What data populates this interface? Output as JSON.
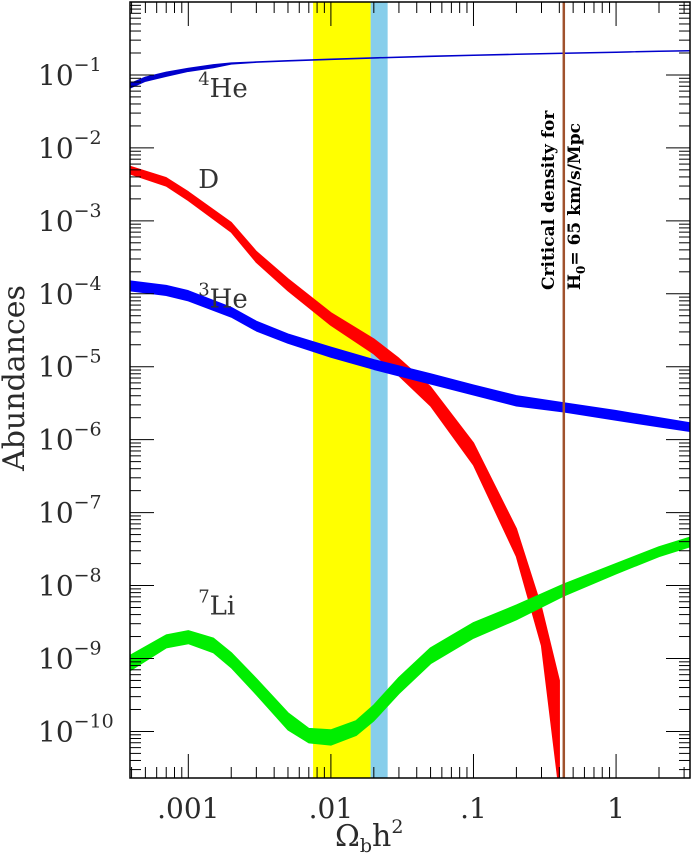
{
  "chart_data": {
    "type": "line",
    "xlabel": {
      "omega": "Ω",
      "sub": "b",
      "h": "h",
      "sup": "2"
    },
    "ylabel": "Abundances",
    "x_scale": "log",
    "y_scale": "log",
    "xlim": [
      0.00039,
      3.3
    ],
    "ylim": [
      2.3e-11,
      1.0
    ],
    "grid": false,
    "x_tick_labels": [
      {
        "value": 0.001,
        "label": ".001"
      },
      {
        "value": 0.01,
        "label": ".01"
      },
      {
        "value": 0.1,
        "label": ".1"
      },
      {
        "value": 1,
        "label": "1"
      }
    ],
    "y_tick_labels": [
      {
        "value": 0.1,
        "base": "10",
        "exp": "−1"
      },
      {
        "value": 0.01,
        "base": "10",
        "exp": "−2"
      },
      {
        "value": 0.001,
        "base": "10",
        "exp": "−3"
      },
      {
        "value": 0.0001,
        "base": "10",
        "exp": "−4"
      },
      {
        "value": 1e-05,
        "base": "10",
        "exp": "−5"
      },
      {
        "value": 1e-06,
        "base": "10",
        "exp": "−6"
      },
      {
        "value": 1e-07,
        "base": "10",
        "exp": "−7"
      },
      {
        "value": 1e-08,
        "base": "10",
        "exp": "−8"
      },
      {
        "value": 1e-09,
        "base": "10",
        "exp": "−9"
      },
      {
        "value": 1e-10,
        "base": "10",
        "exp": "−10"
      }
    ],
    "bands": [
      {
        "x_from": 0.0075,
        "x_to": 0.019,
        "color": "#ffff00"
      },
      {
        "x_from": 0.019,
        "x_to": 0.025,
        "color": "#87ceeb"
      }
    ],
    "vline": {
      "x": 0.43,
      "color": "#a0522d",
      "label_line1": "Critical density for",
      "label_line2_main": "H",
      "label_line2_sub": "0",
      "label_line2_rest": "= 65  km/s/Mpc"
    },
    "series": [
      {
        "name": "4He",
        "label_sup": "4",
        "label_main": "He",
        "label_at": {
          "x": 0.0011,
          "y": 0.05
        },
        "color": "#0000cc",
        "x": [
          0.00039,
          0.0005,
          0.0007,
          0.001,
          0.0015,
          0.002,
          0.003,
          0.005,
          0.01,
          0.02,
          0.05,
          0.1,
          0.2,
          0.43,
          1,
          2,
          3.3
        ],
        "upper": [
          0.076,
          0.093,
          0.109,
          0.123,
          0.138,
          0.146,
          0.151,
          0.157,
          0.165,
          0.172,
          0.181,
          0.187,
          0.193,
          0.199,
          0.206,
          0.212,
          0.216
        ],
        "lower": [
          0.066,
          0.082,
          0.096,
          0.112,
          0.126,
          0.141,
          0.149,
          0.155,
          0.163,
          0.17,
          0.179,
          0.185,
          0.191,
          0.197,
          0.204,
          0.21,
          0.214
        ]
      },
      {
        "name": "D",
        "label_sup": "",
        "label_main": "D",
        "label_at": {
          "x": 0.0011,
          "y": 0.0028
        },
        "color": "#ff0000",
        "x": [
          0.00039,
          0.0007,
          0.001,
          0.002,
          0.003,
          0.005,
          0.01,
          0.02,
          0.03,
          0.05,
          0.1,
          0.2,
          0.3,
          0.4
        ],
        "upper": [
          0.0056,
          0.0039,
          0.0025,
          0.00095,
          0.00038,
          0.00016,
          5.5e-05,
          2.4e-05,
          1.3e-05,
          5.3e-06,
          9e-07,
          6e-08,
          5e-09,
          5e-10
        ],
        "lower": [
          0.0044,
          0.003,
          0.0019,
          0.0007,
          0.00027,
          0.00011,
          3.7e-05,
          1.5e-05,
          7.5e-06,
          2.9e-06,
          4.5e-07,
          2.5e-08,
          1.5e-09,
          1.5e-11
        ]
      },
      {
        "name": "3He",
        "label_sup": "3",
        "label_main": "He",
        "label_at": {
          "x": 0.0011,
          "y": 6.5e-05
        },
        "color": "#0000ff",
        "x": [
          0.00039,
          0.0007,
          0.001,
          0.002,
          0.003,
          0.005,
          0.01,
          0.02,
          0.05,
          0.1,
          0.2,
          0.43,
          1,
          2,
          3.3
        ],
        "upper": [
          0.00015,
          0.00013,
          0.00011,
          6.5e-05,
          4.2e-05,
          2.8e-05,
          1.85e-05,
          1.25e-05,
          8e-06,
          5.6e-06,
          4e-06,
          3.2e-06,
          2.5e-06,
          2e-06,
          1.7e-06
        ],
        "lower": [
          0.00011,
          9.5e-05,
          8e-05,
          4.8e-05,
          3.1e-05,
          2.1e-05,
          1.35e-05,
          9.2e-06,
          5.8e-06,
          4.1e-06,
          2.9e-06,
          2.4e-06,
          1.85e-06,
          1.5e-06,
          1.3e-06
        ]
      },
      {
        "name": "7Li",
        "label_sup": "7",
        "label_main": "Li",
        "label_at": {
          "x": 0.0011,
          "y": 4e-09
        },
        "color": "#00ee00",
        "x": [
          0.00039,
          0.0007,
          0.001,
          0.0015,
          0.002,
          0.003,
          0.005,
          0.007,
          0.01,
          0.015,
          0.02,
          0.03,
          0.05,
          0.1,
          0.2,
          0.43,
          1,
          2,
          3.3
        ],
        "upper": [
          1.1e-09,
          2.1e-09,
          2.4e-09,
          1.9e-09,
          1.2e-09,
          5.3e-10,
          1.8e-10,
          1.1e-10,
          1.05e-10,
          1.4e-10,
          2.3e-10,
          5.5e-10,
          1.4e-09,
          3.1e-09,
          5.4e-09,
          1.05e-08,
          2e-08,
          3.4e-08,
          4.6e-08
        ],
        "lower": [
          6.8e-10,
          1.4e-09,
          1.6e-09,
          1.2e-09,
          7.5e-10,
          3.2e-10,
          1.05e-10,
          7e-11,
          6.5e-11,
          8.8e-11,
          1.4e-10,
          3.3e-10,
          8.5e-10,
          1.9e-09,
          3.4e-09,
          7.2e-09,
          1.45e-08,
          2.5e-08,
          3.4e-08
        ]
      }
    ]
  }
}
